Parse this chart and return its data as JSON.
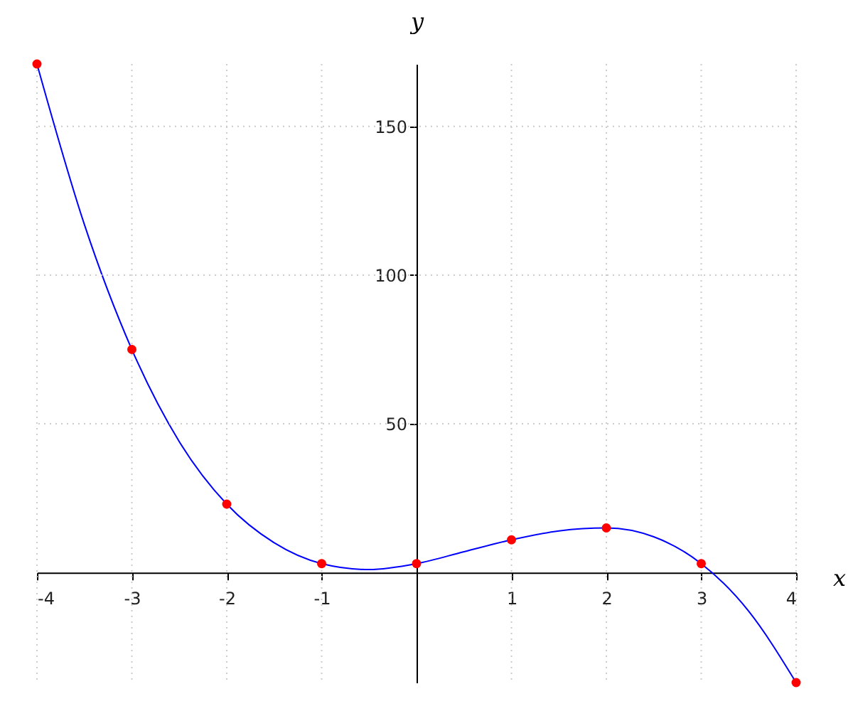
{
  "chart_data": {
    "type": "line",
    "xlabel": "x",
    "ylabel": "y",
    "xlim": [
      -4,
      4
    ],
    "ylim": [
      -37,
      171
    ],
    "xticks": [
      -4,
      -3,
      -2,
      -1,
      1,
      2,
      3,
      4
    ],
    "yticks": [
      50,
      100,
      150
    ],
    "grid": true,
    "series": [
      {
        "color": "#0000ff",
        "marker": "none",
        "line_style": "solid",
        "x": [
          -4,
          -3.5,
          -3,
          -2.5,
          -2,
          -1.5,
          -1,
          -0.5,
          0,
          0.5,
          1,
          1.5,
          2,
          2.5,
          3,
          3.5,
          4
        ],
        "values": [
          171,
          117,
          75,
          44,
          23,
          10,
          3,
          1,
          3,
          7,
          11,
          14,
          15,
          12,
          3,
          -13,
          -37
        ]
      },
      {
        "type": "scatter",
        "color": "#ff0000",
        "marker": "circle",
        "x": [
          -4,
          -3,
          -2,
          -1,
          0,
          1,
          2,
          3,
          4
        ],
        "values": [
          171,
          75,
          23,
          3,
          3,
          11,
          15,
          3,
          -37
        ]
      }
    ]
  }
}
